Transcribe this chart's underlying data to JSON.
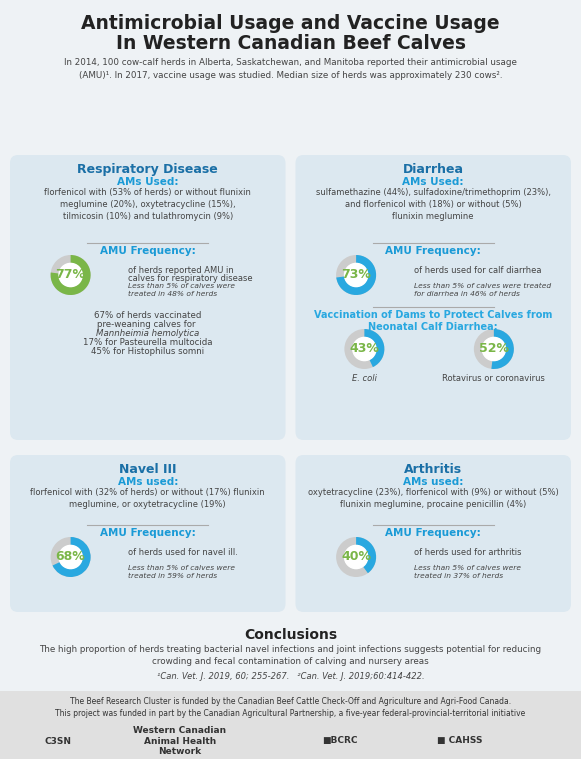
{
  "title_line1": "Antimicrobial Usage and Vaccine Usage",
  "title_line2": "In Western Canadian Beef Calves",
  "subtitle": "In 2014, 100 cow-calf herds in Alberta, Saskatchewan, and Manitoba reported their antimicrobial usage\n(AMU)¹. In 2017, vaccine usage was studied. Median size of herds was approximately 230 cows².",
  "bg_color": "#eef2f5",
  "card_color": "#dce8f0",
  "title_color": "#222222",
  "header_color": "#1a6fa6",
  "amu_label_color": "#1a9ad6",
  "text_color": "#444444",
  "green_color": "#7ab648",
  "blue_color": "#29a8e0",
  "gray_color": "#cccccc",
  "dark_teal": "#1a7a9a",
  "panels": [
    {
      "id": 0,
      "title": "Respiratory Disease",
      "ams_used_label": "AMs Used:",
      "ams_used_text": "florfenicol with (53% of herds) or without flunixin\nmeglumine (20%), oxytetracycline (15%),\ntilmicosin (10%) and tulathromycin (9%)",
      "amu_freq_label": "AMU Frequency:",
      "donut_pct": 77,
      "donut_color": "#7ab648",
      "donut_text": "77%",
      "freq_text1": "of herds reported AMU in",
      "freq_text2": "calves for respiratory disease",
      "freq_italic": "Less than 5% of calves were\ntreated in 48% of herds",
      "vac_line1": "67% of herds vaccinated",
      "vac_line2": "pre-weaning calves for ",
      "vac_italic1": "Mannheimia hemolytica",
      "vac_plain2": "17% for ",
      "vac_italic2": "Pasteurella multocida",
      "vac_plain3": "45% for ",
      "vac_italic3": "Histophilus somni"
    },
    {
      "id": 1,
      "title": "Diarrhea",
      "ams_used_label": "AMs Used:",
      "ams_used_text": "sulfamethazine (44%), sulfadoxine/trimethoprim (23%),\nand florfenicol with (18%) or without (5%)\nflunixin meglumine",
      "amu_freq_label": "AMU Frequency:",
      "donut_pct": 73,
      "donut_color": "#29a8e0",
      "donut_text": "73%",
      "freq_text1": "of herds used for calf diarrhea",
      "freq_text2": "",
      "freq_italic": "Less than 5% of calves were treated\nfor diarrhea in 46% of herds",
      "vaccine_section_title": "Vaccination of Dams to Protect Calves from\nNeonatal Calf Diarrhea:",
      "vaccine_donuts": [
        {
          "pct": 43,
          "color": "#29a8e0",
          "label": "E. coli",
          "label_italic": true
        },
        {
          "pct": 52,
          "color": "#29a8e0",
          "label": "Rotavirus or coronavirus",
          "label_italic": false
        }
      ]
    },
    {
      "id": 2,
      "title": "Navel III",
      "ams_used_label": "AMs used:",
      "ams_used_text": "florfenicol with (32% of herds) or without (17%) flunixin\nmeglumine, or oxytetracycline (19%)",
      "amu_freq_label": "AMU Frequency:",
      "donut_pct": 68,
      "donut_color": "#29a8e0",
      "donut_text": "68%",
      "freq_text1": "of herds used for navel ill.",
      "freq_text2": "",
      "freq_italic": "Less than 5% of calves were\ntreated in 59% of herds"
    },
    {
      "id": 3,
      "title": "Arthritis",
      "ams_used_label": "AMs used:",
      "ams_used_text": "oxytetracycline (23%), florfenicol with (9%) or without (5%)\nflunixin meglumine, procaine penicillin (4%)",
      "amu_freq_label": "AMU Frequency:",
      "donut_pct": 40,
      "donut_color": "#29a8e0",
      "donut_text": "40%",
      "freq_text1": "of herds used for arthritis",
      "freq_text2": "",
      "freq_italic": "Less than 5% of calves were\ntreated in 37% of herds"
    }
  ],
  "conclusions_title": "Conclusions",
  "conclusions_text": "The high proportion of herds treating bacterial navel infections and joint infections suggests potential for reducing\ncrowding and fecal contamination of calving and nursery areas",
  "footnote": "¹Can. Vet. J. 2019, 60; 255-267.   ²Can. Vet. J. 2019;60:414-422.",
  "footer_bg": "#e0e0e0",
  "footer_text": "The Beef Research Cluster is funded by the Canadian Beef Cattle Check-Off and Agriculture and Agri-Food Canada.\nThis project was funded in part by the Canadian Agricultural Partnership, a five-year federal-provincial-territorial initiative"
}
